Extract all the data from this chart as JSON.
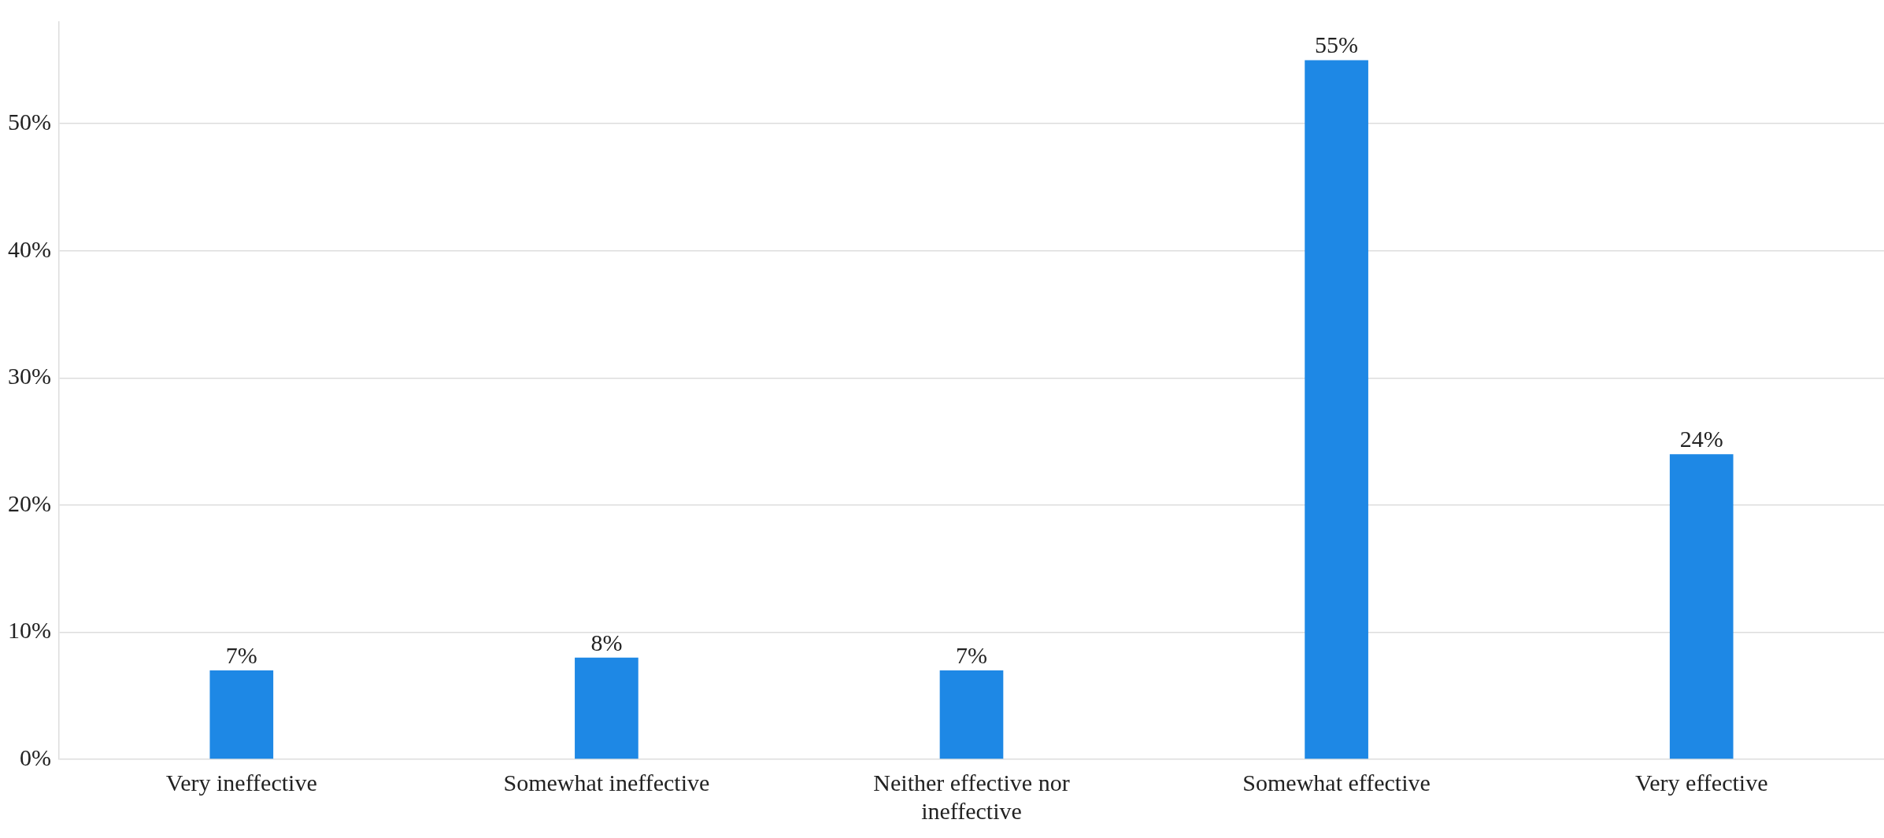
{
  "chart_data": {
    "type": "bar",
    "categories": [
      "Very ineffective",
      "Somewhat ineffective",
      "Neither effective nor ineffective",
      "Somewhat effective",
      "Very effective"
    ],
    "values": [
      7,
      8,
      7,
      55,
      24
    ],
    "color": "#1e88e5",
    "value_labels": [
      "7%",
      "8%",
      "7%",
      "55%",
      "24%"
    ],
    "ylim": [
      0,
      58
    ],
    "yticks": [
      {
        "value": 0,
        "label": "0%"
      },
      {
        "value": 10,
        "label": "10%"
      },
      {
        "value": 20,
        "label": "20%"
      },
      {
        "value": 30,
        "label": "30%"
      },
      {
        "value": 40,
        "label": "40%"
      },
      {
        "value": 50,
        "label": "50%"
      }
    ],
    "grid": "y",
    "legend": false
  }
}
